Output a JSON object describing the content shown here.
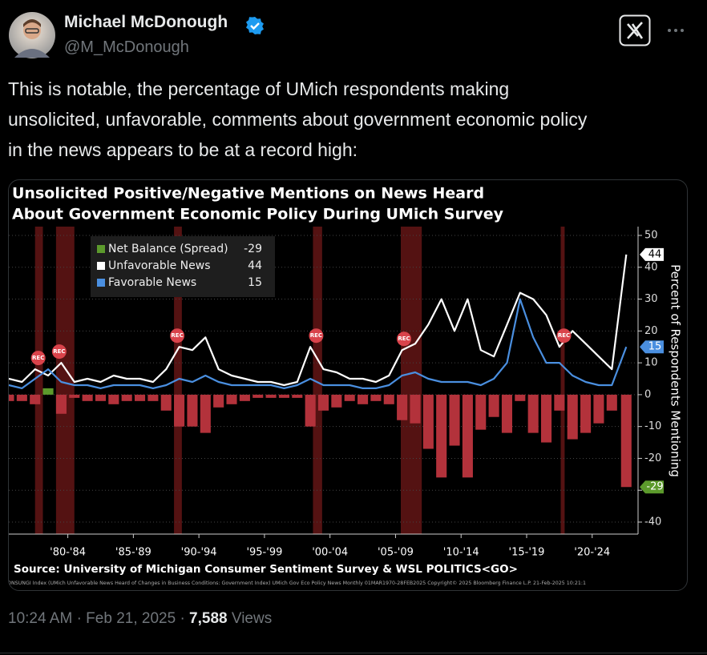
{
  "author": {
    "name": "Michael McDonough",
    "handle": "@M_McDonough"
  },
  "text_lines": [
    "This is notable, the percentage of UMich respondents making",
    "unsolicited, unfavorable, comments about government economic policy",
    "in the news appears to be at a record high:"
  ],
  "chart_data": {
    "type": "bar-line",
    "title_lines": [
      "Unsolicited Positive/Negative Mentions on News Heard",
      "About Government Economic Policy During UMich Survey"
    ],
    "x": [
      1978,
      1979,
      1980,
      1981,
      1982,
      1983,
      1984,
      1985,
      1986,
      1987,
      1988,
      1989,
      1990,
      1991,
      1992,
      1993,
      1994,
      1995,
      1996,
      1997,
      1998,
      1999,
      2000,
      2001,
      2002,
      2003,
      2004,
      2005,
      2006,
      2007,
      2008,
      2009,
      2010,
      2011,
      2012,
      2013,
      2014,
      2015,
      2016,
      2017,
      2018,
      2019,
      2020,
      2021,
      2022,
      2023,
      2024,
      2025.1
    ],
    "series": [
      {
        "name": "Net Balance (Spread)",
        "type": "bar",
        "color": "#b3323b",
        "positive_color": "#5c9a2c",
        "values": [
          -2,
          -2,
          -3,
          2,
          -6,
          -1,
          -2,
          -2,
          -3,
          -2,
          -2,
          -2,
          -5,
          -10,
          -10,
          -12,
          -4,
          -3,
          -2,
          -1,
          -1,
          -1,
          -1,
          -10,
          -5,
          -4,
          -2,
          -3,
          -2,
          -3,
          -8,
          -9,
          -17,
          -26,
          -16,
          -26,
          -11,
          -7,
          -12,
          -2,
          -12,
          -15,
          -5,
          -14,
          -12,
          -9,
          -5,
          -29
        ]
      },
      {
        "name": "Unfavorable News",
        "type": "line",
        "color": "#ffffff",
        "values": [
          5,
          4,
          8,
          6,
          10,
          4,
          5,
          4,
          6,
          5,
          5,
          4,
          8,
          15,
          14,
          18,
          8,
          6,
          5,
          4,
          4,
          3,
          4,
          15,
          8,
          7,
          5,
          5,
          4,
          6,
          14,
          16,
          22,
          30,
          20,
          30,
          14,
          12,
          22,
          32,
          30,
          25,
          15,
          20,
          16,
          12,
          8,
          44
        ]
      },
      {
        "name": "Favorable News",
        "type": "line",
        "color": "#4a8fe0",
        "values": [
          3,
          2,
          5,
          8,
          4,
          3,
          3,
          2,
          3,
          3,
          3,
          2,
          3,
          5,
          4,
          6,
          4,
          3,
          3,
          3,
          3,
          2,
          3,
          5,
          3,
          3,
          3,
          2,
          2,
          3,
          6,
          7,
          5,
          4,
          4,
          4,
          3,
          5,
          10,
          30,
          18,
          10,
          10,
          6,
          4,
          3,
          3,
          15
        ]
      }
    ],
    "xlim": [
      1978,
      2026
    ],
    "xticks": [
      {
        "value": 1982.5,
        "label": "'80-'84"
      },
      {
        "value": 1987.5,
        "label": "'85-'89"
      },
      {
        "value": 1992.5,
        "label": "'90-'94"
      },
      {
        "value": 1997.5,
        "label": "'95-'99"
      },
      {
        "value": 2002.5,
        "label": "'00-'04"
      },
      {
        "value": 2007.5,
        "label": "'05-'09"
      },
      {
        "value": 2012.5,
        "label": "'10-'14"
      },
      {
        "value": 2017.5,
        "label": "'15-'19"
      },
      {
        "value": 2022.5,
        "label": "'20-'24"
      }
    ],
    "ylim": [
      -40,
      50
    ],
    "yticks": [
      50,
      40,
      30,
      20,
      10,
      0,
      -10,
      -20,
      -30,
      -40
    ],
    "ylabel": "Percent of Respondents Mentioning",
    "grid": true,
    "legend_loc": "upper left",
    "recessions": [
      [
        1980,
        1980.6
      ],
      [
        1981.6,
        1983
      ],
      [
        1990.6,
        1991.2
      ],
      [
        2001.2,
        2001.9
      ],
      [
        2007.9,
        2009.5
      ],
      [
        2020.1,
        2020.4
      ]
    ],
    "rec_label": "REC",
    "source": "Source: University of Michigan Consumer Sentiment Survey & WSL POLITICS<GO>",
    "footnote": "ONSUNGI Index (UMich Unfavorable News Heard of Changes in Business Conditions: Government Index) UMich Gov Eco Policy News  Monthly 01MAR1970-28FEB2025  Copyright© 2025 Bloomberg Finance L.P.   21-Feb-2025 10:21:1"
  },
  "meta": {
    "time": "10:24 AM",
    "separator": "·",
    "date": "Feb 21, 2025",
    "views": "7,588",
    "views_label": "Views"
  }
}
